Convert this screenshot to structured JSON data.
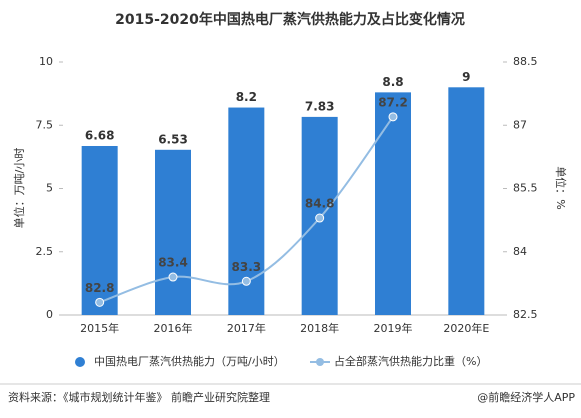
{
  "chart_data": {
    "type": "bar_line",
    "title": "2015-2020年中国热电厂蒸汽供热能力及占比变化情况",
    "ylabel": "单位：万吨/小时",
    "y2label": "单位：%",
    "categories": [
      "2015年",
      "2016年",
      "2017年",
      "2018年",
      "2019年",
      "2020年E"
    ],
    "series": [
      {
        "name": "中国热电厂蒸汽供热能力（万吨/小时）",
        "type": "bar",
        "color": "#2f7fd3",
        "values": [
          6.68,
          6.53,
          8.2,
          7.83,
          8.8,
          9
        ]
      },
      {
        "name": "占全部蒸汽供热能力比重（%）",
        "type": "line",
        "axis": "y2",
        "color": "#94bde3",
        "values": [
          82.8,
          83.4,
          83.3,
          84.8,
          87.2,
          null
        ]
      }
    ],
    "ylim": [
      0,
      10
    ],
    "yticks": [
      0,
      2.5,
      5,
      7.5,
      10
    ],
    "y2lim": [
      82.5,
      88.5
    ],
    "y2ticks": [
      82.5,
      84,
      85.5,
      87,
      88.5
    ],
    "source": "资料来源：《城市规划统计年鉴》 前瞻产业研究院整理",
    "credit": "@前瞻经济学人APP"
  }
}
